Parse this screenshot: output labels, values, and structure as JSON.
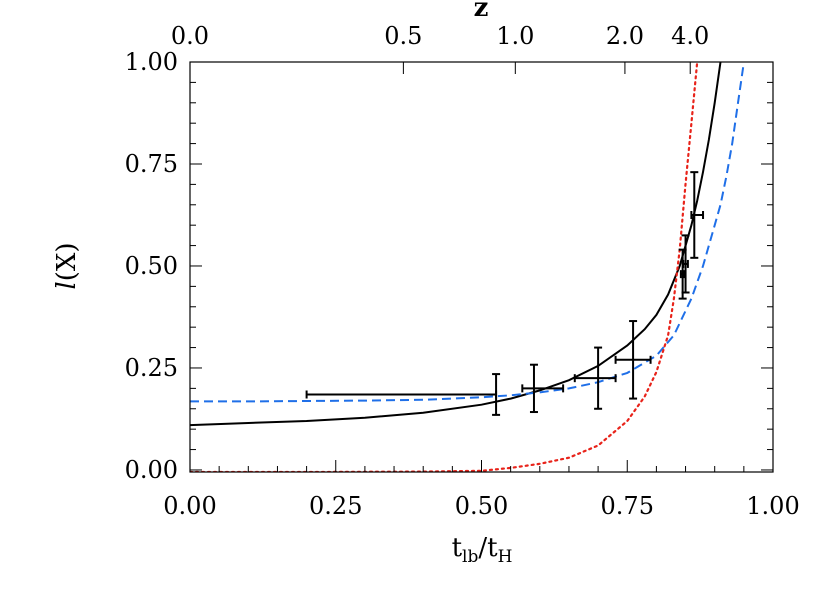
{
  "chart_data": {
    "type": "line",
    "title": "",
    "xlabel": "t_lb/t_H",
    "xlabel_main": "t",
    "xlabel_sub1": "lb",
    "xlabel_sep": "/t",
    "xlabel_sub2": "H",
    "ylabel": "l(X)",
    "ylabel_italic": "l",
    "ylabel_rest": "(X)",
    "top_axis_label": "z",
    "xlim": [
      0.0,
      1.0
    ],
    "ylim": [
      -0.005,
      1.0
    ],
    "x_ticks": [
      0.0,
      0.25,
      0.5,
      0.75,
      1.0
    ],
    "x_tick_labels": [
      "0.00",
      "0.25",
      "0.50",
      "0.75",
      "1.00"
    ],
    "y_ticks": [
      0.0,
      0.25,
      0.5,
      0.75,
      1.0
    ],
    "y_tick_labels": [
      "0.00",
      "0.25",
      "0.50",
      "0.75",
      "1.00"
    ],
    "top_ticks": [
      {
        "x": 0.0,
        "label": "0.0"
      },
      {
        "x": 0.366,
        "label": "0.5"
      },
      {
        "x": 0.558,
        "label": "1.0"
      },
      {
        "x": 0.746,
        "label": "2.0"
      },
      {
        "x": 0.858,
        "label": "4.0"
      }
    ],
    "grid": false,
    "series": [
      {
        "style": "solid",
        "color": "#000000",
        "x": [
          0.0,
          0.1,
          0.2,
          0.3,
          0.4,
          0.5,
          0.55,
          0.6,
          0.65,
          0.7,
          0.75,
          0.78,
          0.8,
          0.82,
          0.84,
          0.86,
          0.87,
          0.88,
          0.89,
          0.9,
          0.91
        ],
        "y": [
          0.11,
          0.115,
          0.12,
          0.128,
          0.14,
          0.16,
          0.175,
          0.195,
          0.22,
          0.255,
          0.305,
          0.345,
          0.38,
          0.43,
          0.5,
          0.6,
          0.66,
          0.73,
          0.81,
          0.9,
          1.0
        ]
      },
      {
        "style": "dashed",
        "color": "#1f6fe8",
        "x": [
          0.0,
          0.1,
          0.2,
          0.3,
          0.4,
          0.5,
          0.55,
          0.6,
          0.65,
          0.7,
          0.75,
          0.8,
          0.83,
          0.86,
          0.88,
          0.9,
          0.91,
          0.92,
          0.93,
          0.94,
          0.95
        ],
        "y": [
          0.168,
          0.168,
          0.169,
          0.17,
          0.172,
          0.178,
          0.183,
          0.19,
          0.2,
          0.215,
          0.238,
          0.28,
          0.33,
          0.42,
          0.5,
          0.6,
          0.65,
          0.72,
          0.8,
          0.9,
          1.0
        ]
      },
      {
        "style": "dotted",
        "color": "#e8231a",
        "x": [
          0.0,
          0.2,
          0.4,
          0.5,
          0.55,
          0.6,
          0.65,
          0.7,
          0.75,
          0.78,
          0.8,
          0.82,
          0.83,
          0.84,
          0.85,
          0.86,
          0.87
        ],
        "y": [
          -0.005,
          -0.005,
          -0.004,
          -0.002,
          0.005,
          0.015,
          0.03,
          0.06,
          0.12,
          0.18,
          0.24,
          0.33,
          0.42,
          0.54,
          0.7,
          0.85,
          1.0
        ]
      }
    ],
    "error_points": [
      {
        "x": 0.525,
        "y": 0.185,
        "xerr": [
          0.325,
          0.0
        ],
        "yerr": [
          0.05,
          0.05
        ]
      },
      {
        "x": 0.59,
        "y": 0.2,
        "xerr": [
          0.02,
          0.05
        ],
        "yerr": [
          0.058,
          0.058
        ]
      },
      {
        "x": 0.7,
        "y": 0.225,
        "xerr": [
          0.04,
          0.03
        ],
        "yerr": [
          0.075,
          0.075
        ]
      },
      {
        "x": 0.76,
        "y": 0.27,
        "xerr": [
          0.03,
          0.03
        ],
        "yerr": [
          0.095,
          0.095
        ]
      },
      {
        "x": 0.845,
        "y": 0.48,
        "xerr": [
          0.003,
          0.003
        ],
        "yerr": [
          0.06,
          0.06
        ]
      },
      {
        "x": 0.85,
        "y": 0.505,
        "xerr": [
          0.004,
          0.004
        ],
        "yerr": [
          0.07,
          0.07
        ]
      },
      {
        "x": 0.865,
        "y": 0.625,
        "xerr": [
          0.005,
          0.015
        ],
        "yerr": [
          0.105,
          0.105
        ]
      }
    ]
  }
}
